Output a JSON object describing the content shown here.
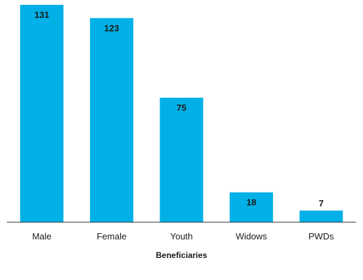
{
  "chart_data": {
    "type": "bar",
    "title": "",
    "xlabel": "Beneficiaries",
    "ylabel": "",
    "categories": [
      "Male",
      "Female",
      "Youth",
      "Widows",
      "PWDs"
    ],
    "values": [
      131,
      123,
      75,
      18,
      7
    ],
    "ylim": [
      0,
      135
    ],
    "grid": false,
    "legend": "none",
    "bar_color": "#00b0e6",
    "axis_color": "#333333"
  }
}
